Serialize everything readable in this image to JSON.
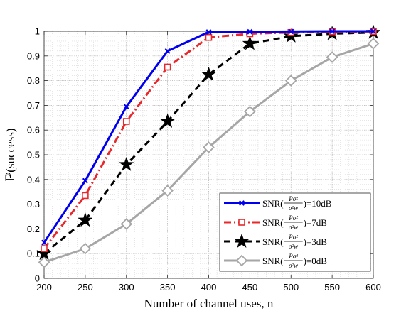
{
  "chart_data": {
    "type": "line",
    "xlabel": "Number of channel uses, n",
    "ylabel": "ℙ(success)",
    "xlim": [
      200,
      600
    ],
    "ylim": [
      0,
      1
    ],
    "x_ticks": [
      200,
      250,
      300,
      350,
      400,
      450,
      500,
      550,
      600
    ],
    "x_tick_labels": [
      "200",
      "250",
      "300",
      "350",
      "400",
      "450",
      "500",
      "550",
      "600"
    ],
    "y_ticks": [
      0,
      0.1,
      0.2,
      0.3,
      0.4,
      0.5,
      0.6,
      0.7,
      0.8,
      0.9,
      1
    ],
    "y_tick_labels": [
      "0",
      "0.1",
      "0.2",
      "0.3",
      "0.4",
      "0.5",
      "0.6",
      "0.7",
      "0.8",
      "0.9",
      "1"
    ],
    "grid": true,
    "minor_grid": true,
    "legend_position": "bottom-right",
    "x": [
      200,
      250,
      300,
      350,
      400,
      450,
      500,
      550,
      600
    ],
    "series": [
      {
        "name_prefix": "SNR(",
        "name_suffix": ")=10dB",
        "values": [
          0.145,
          0.395,
          0.695,
          0.92,
          0.997,
          0.998,
          0.999,
          1.0,
          1.0
        ],
        "color": "#0000ee",
        "dash": "solid",
        "marker": "x"
      },
      {
        "name_prefix": "SNR(",
        "name_suffix": ")=7dB",
        "values": [
          0.12,
          0.335,
          0.635,
          0.855,
          0.975,
          0.99,
          0.995,
          0.998,
          0.999
        ],
        "color": "#e8282b",
        "dash": "dashdot",
        "marker": "square"
      },
      {
        "name_prefix": "SNR(",
        "name_suffix": ")=3dB",
        "values": [
          0.1,
          0.235,
          0.46,
          0.635,
          0.825,
          0.95,
          0.98,
          0.99,
          0.995
        ],
        "color": "#000000",
        "dash": "dashed",
        "marker": "star"
      },
      {
        "name_prefix": "SNR(",
        "name_suffix": ")=0dB",
        "values": [
          0.065,
          0.12,
          0.22,
          0.355,
          0.53,
          0.675,
          0.8,
          0.895,
          0.95
        ],
        "color": "#a6a6a6",
        "dash": "solid",
        "marker": "diamond"
      }
    ]
  }
}
